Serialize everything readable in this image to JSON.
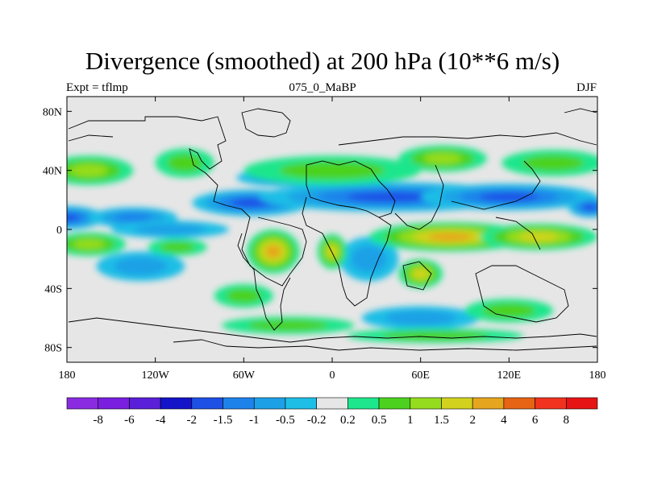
{
  "chart_data": {
    "type": "heatmap",
    "title": "Divergence (smoothed) at 200 hPa (10**6 m/s)",
    "left_label": "Expt = tflmp",
    "center_label": "075_0_MaBP",
    "right_label": "DJF",
    "xlim": [
      -180,
      180
    ],
    "ylim": [
      -90,
      90
    ],
    "x_ticks": [
      {
        "value": -180,
        "label": "180"
      },
      {
        "value": -120,
        "label": "120W"
      },
      {
        "value": -60,
        "label": "60W"
      },
      {
        "value": 0,
        "label": "0"
      },
      {
        "value": 60,
        "label": "60E"
      },
      {
        "value": 120,
        "label": "120E"
      },
      {
        "value": 180,
        "label": "180"
      }
    ],
    "y_ticks": [
      {
        "value": 80,
        "label": "80N"
      },
      {
        "value": 40,
        "label": "40N"
      },
      {
        "value": 0,
        "label": "0"
      },
      {
        "value": -40,
        "label": "40S"
      },
      {
        "value": -80,
        "label": "80S"
      }
    ],
    "colorbar": {
      "colors": [
        "#8a2be2",
        "#7a1ee0",
        "#5a1fd8",
        "#1414c8",
        "#1e50e6",
        "#1e82eb",
        "#1ea0e6",
        "#1ebee6",
        "#e6e6e6",
        "#1ee68c",
        "#4cd21e",
        "#96dc1e",
        "#d2d21e",
        "#e6a51e",
        "#e66414",
        "#f0321e",
        "#e61414"
      ],
      "labels": [
        "-8",
        "-6",
        "-4",
        "-2",
        "-1.5",
        "-1",
        "-0.5",
        "-0.2",
        "0.2",
        "0.5",
        "1",
        "1.5",
        "2",
        "4",
        "6",
        "8"
      ]
    },
    "features": [
      {
        "lon": -180,
        "lat": 8,
        "rx": 25,
        "ry": 8,
        "level": -3
      },
      {
        "lon": -135,
        "lat": 8,
        "rx": 30,
        "ry": 7,
        "level": -2
      },
      {
        "lon": -55,
        "lat": 18,
        "rx": 40,
        "ry": 9,
        "level": -3
      },
      {
        "lon": 40,
        "lat": 22,
        "rx": 90,
        "ry": 10,
        "level": -3
      },
      {
        "lon": 120,
        "lat": 22,
        "rx": 60,
        "ry": 9,
        "level": -3
      },
      {
        "lon": 175,
        "lat": 15,
        "rx": 15,
        "ry": 7,
        "level": -3
      },
      {
        "lon": -30,
        "lat": 35,
        "rx": 35,
        "ry": 6,
        "level": -2
      },
      {
        "lon": -110,
        "lat": 0,
        "rx": 40,
        "ry": 6,
        "level": -1
      },
      {
        "lon": 25,
        "lat": -20,
        "rx": 20,
        "ry": 15,
        "level": -1
      },
      {
        "lon": -130,
        "lat": -25,
        "rx": 30,
        "ry": 10,
        "level": -1
      },
      {
        "lon": 60,
        "lat": -60,
        "rx": 40,
        "ry": 8,
        "level": -1
      },
      {
        "lon": -165,
        "lat": 40,
        "rx": 30,
        "ry": 10,
        "level": 2
      },
      {
        "lon": -100,
        "lat": 45,
        "rx": 20,
        "ry": 10,
        "level": 1
      },
      {
        "lon": 0,
        "lat": 40,
        "rx": 60,
        "ry": 10,
        "level": 1
      },
      {
        "lon": 75,
        "lat": 48,
        "rx": 30,
        "ry": 9,
        "level": 2
      },
      {
        "lon": 150,
        "lat": 45,
        "rx": 35,
        "ry": 9,
        "level": 1
      },
      {
        "lon": -165,
        "lat": -10,
        "rx": 25,
        "ry": 8,
        "level": 2
      },
      {
        "lon": -105,
        "lat": -12,
        "rx": 20,
        "ry": 6,
        "level": 1
      },
      {
        "lon": -40,
        "lat": -15,
        "rx": 18,
        "ry": 15,
        "level": 4
      },
      {
        "lon": 0,
        "lat": -15,
        "rx": 10,
        "ry": 12,
        "level": 3
      },
      {
        "lon": 80,
        "lat": -5,
        "rx": 55,
        "ry": 10,
        "level": 4
      },
      {
        "lon": 140,
        "lat": -5,
        "rx": 40,
        "ry": 9,
        "level": 3
      },
      {
        "lon": 60,
        "lat": -30,
        "rx": 15,
        "ry": 10,
        "level": 3
      },
      {
        "lon": -60,
        "lat": -45,
        "rx": 20,
        "ry": 8,
        "level": 1
      },
      {
        "lon": 120,
        "lat": -55,
        "rx": 30,
        "ry": 8,
        "level": 1
      },
      {
        "lon": -30,
        "lat": -65,
        "rx": 45,
        "ry": 6,
        "level": 1
      },
      {
        "lon": 70,
        "lat": -72,
        "rx": 60,
        "ry": 5,
        "level": 1
      }
    ]
  }
}
